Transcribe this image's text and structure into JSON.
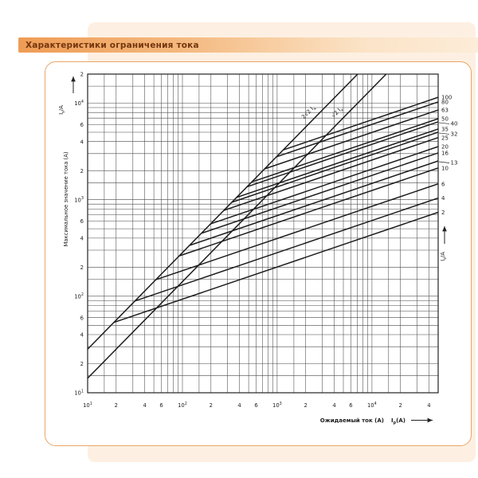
{
  "page": {
    "title_banner": "Характеристики ограничения тока"
  },
  "colors": {
    "banner_start": "#ef9c55",
    "banner_end": "#fdecd8",
    "panel_bg": "#fdf0e2",
    "box_border": "#e8a668",
    "title_text": "#74360e",
    "grid": "#474747",
    "curve": "#1c1c1c"
  },
  "chart_data": {
    "type": "line",
    "title": "Характеристики ограничения тока",
    "xlabel": "Ожидаемый ток (A)",
    "xlabel_symbol": "I_p(A)",
    "ylabel": "Максимальное значение тока (A)",
    "y_axis_symbol": "I_s/A",
    "right_axis_symbol": "I_s/A",
    "x_scale": "log",
    "y_scale": "log",
    "xlim": [
      10,
      50000
    ],
    "ylim": [
      10,
      20000
    ],
    "grid": true,
    "grid_multiples": [
      1,
      1.5,
      2,
      3,
      4,
      5,
      6,
      7,
      8,
      9
    ],
    "x_ticks": [
      {
        "v": 10,
        "label": "10^1"
      },
      {
        "v": 20,
        "label": "2"
      },
      {
        "v": 40,
        "label": "4"
      },
      {
        "v": 60,
        "label": "6"
      },
      {
        "v": 100,
        "label": "10^2"
      },
      {
        "v": 200,
        "label": "2"
      },
      {
        "v": 400,
        "label": "4"
      },
      {
        "v": 600,
        "label": "6"
      },
      {
        "v": 1000,
        "label": "10^3"
      },
      {
        "v": 2000,
        "label": "2"
      },
      {
        "v": 4000,
        "label": "4"
      },
      {
        "v": 6000,
        "label": "6"
      },
      {
        "v": 10000,
        "label": "10^4"
      },
      {
        "v": 20000,
        "label": "2"
      },
      {
        "v": 40000,
        "label": "4"
      }
    ],
    "y_ticks": [
      {
        "v": 20000,
        "label": "2"
      },
      {
        "v": 10000,
        "label": "10^4"
      },
      {
        "v": 6000,
        "label": "6"
      },
      {
        "v": 4000,
        "label": "4"
      },
      {
        "v": 2000,
        "label": "2"
      },
      {
        "v": 1000,
        "label": "10^3"
      },
      {
        "v": 600,
        "label": "6"
      },
      {
        "v": 400,
        "label": "4"
      },
      {
        "v": 200,
        "label": "2"
      },
      {
        "v": 100,
        "label": "10^2"
      },
      {
        "v": 60,
        "label": "6"
      },
      {
        "v": 40,
        "label": "4"
      },
      {
        "v": 20,
        "label": "2"
      },
      {
        "v": 10,
        "label": "10^1"
      }
    ],
    "reference_lines": [
      {
        "label": "2√2 I_к",
        "factor": 2.8284
      },
      {
        "label": "√2 I_к",
        "factor": 1.4142
      }
    ],
    "fuse_curves": {
      "slope": 0.33333,
      "end_x": 50000,
      "start_on_factor": 2.8284,
      "series": [
        {
          "rating": "100",
          "end_y": 11500,
          "label_offset": false
        },
        {
          "rating": "80",
          "end_y": 10300,
          "label_offset": false
        },
        {
          "rating": "63",
          "end_y": 8500,
          "label_offset": false
        },
        {
          "rating": "50",
          "end_y": 6900,
          "label_offset": false
        },
        {
          "rating": "40",
          "end_y": 6400,
          "label_offset": true
        },
        {
          "rating": "35",
          "end_y": 5400,
          "label_offset": false
        },
        {
          "rating": "32",
          "end_y": 5000,
          "label_offset": true
        },
        {
          "rating": "25",
          "end_y": 4400,
          "label_offset": false
        },
        {
          "rating": "20",
          "end_y": 3550,
          "label_offset": false
        },
        {
          "rating": "16",
          "end_y": 3050,
          "label_offset": false
        },
        {
          "rating": "13",
          "end_y": 2520,
          "label_offset": true
        },
        {
          "rating": "10",
          "end_y": 2130,
          "label_offset": false
        },
        {
          "rating": "6",
          "end_y": 1460,
          "label_offset": false
        },
        {
          "rating": "4",
          "end_y": 1040,
          "label_offset": false
        },
        {
          "rating": "2",
          "end_y": 740,
          "label_offset": false
        }
      ]
    }
  }
}
